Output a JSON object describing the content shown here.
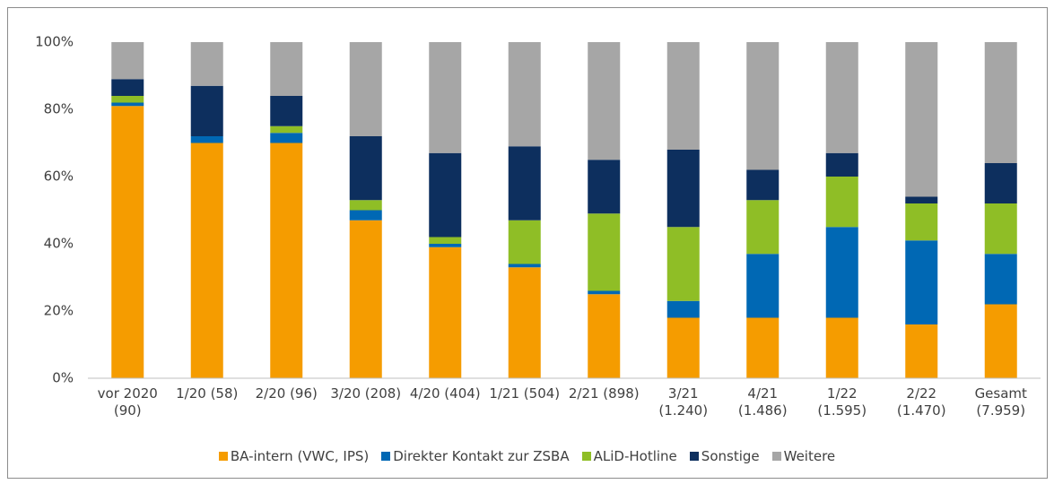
{
  "chart_data": {
    "type": "bar",
    "stacked": true,
    "categories": [
      "vor 2020 (90)",
      "1/20 (58)",
      "2/20 (96)",
      "3/20 (208)",
      "4/20 (404)",
      "1/21 (504)",
      "2/21 (898)",
      "3/21 (1.240)",
      "4/21 (1.486)",
      "1/22 (1.595)",
      "2/22 (1.470)",
      "Gesamt (7.959)"
    ],
    "series": [
      {
        "name": "BA-intern (VWC, IPS)",
        "color": "#f59c00",
        "values": [
          81,
          70,
          70,
          47,
          39,
          33,
          25,
          18,
          18,
          18,
          16,
          22
        ]
      },
      {
        "name": "Direkter Kontakt zur ZSBA",
        "color": "#0068b4",
        "values": [
          1,
          2,
          3,
          3,
          1,
          1,
          1,
          5,
          19,
          27,
          25,
          15
        ]
      },
      {
        "name": "ALiD-Hotline",
        "color": "#8fbe26",
        "values": [
          2,
          0,
          2,
          3,
          2,
          13,
          23,
          22,
          16,
          15,
          11,
          15
        ]
      },
      {
        "name": "Sonstige",
        "color": "#0d2f5e",
        "values": [
          5,
          15,
          9,
          19,
          25,
          22,
          16,
          23,
          9,
          7,
          2,
          12
        ]
      },
      {
        "name": "Weitere",
        "color": "#a6a6a6",
        "values": [
          11,
          13,
          16,
          28,
          33,
          31,
          35,
          32,
          38,
          33,
          46,
          36
        ]
      }
    ],
    "ylim": [
      0,
      100
    ],
    "yticks": [
      {
        "value": 0,
        "label": "0%"
      },
      {
        "value": 20,
        "label": "20%"
      },
      {
        "value": 40,
        "label": "40%"
      },
      {
        "value": 60,
        "label": "60%"
      },
      {
        "value": 80,
        "label": "80%"
      },
      {
        "value": 100,
        "label": "100%"
      }
    ],
    "grid": false,
    "legend": "bottom"
  }
}
